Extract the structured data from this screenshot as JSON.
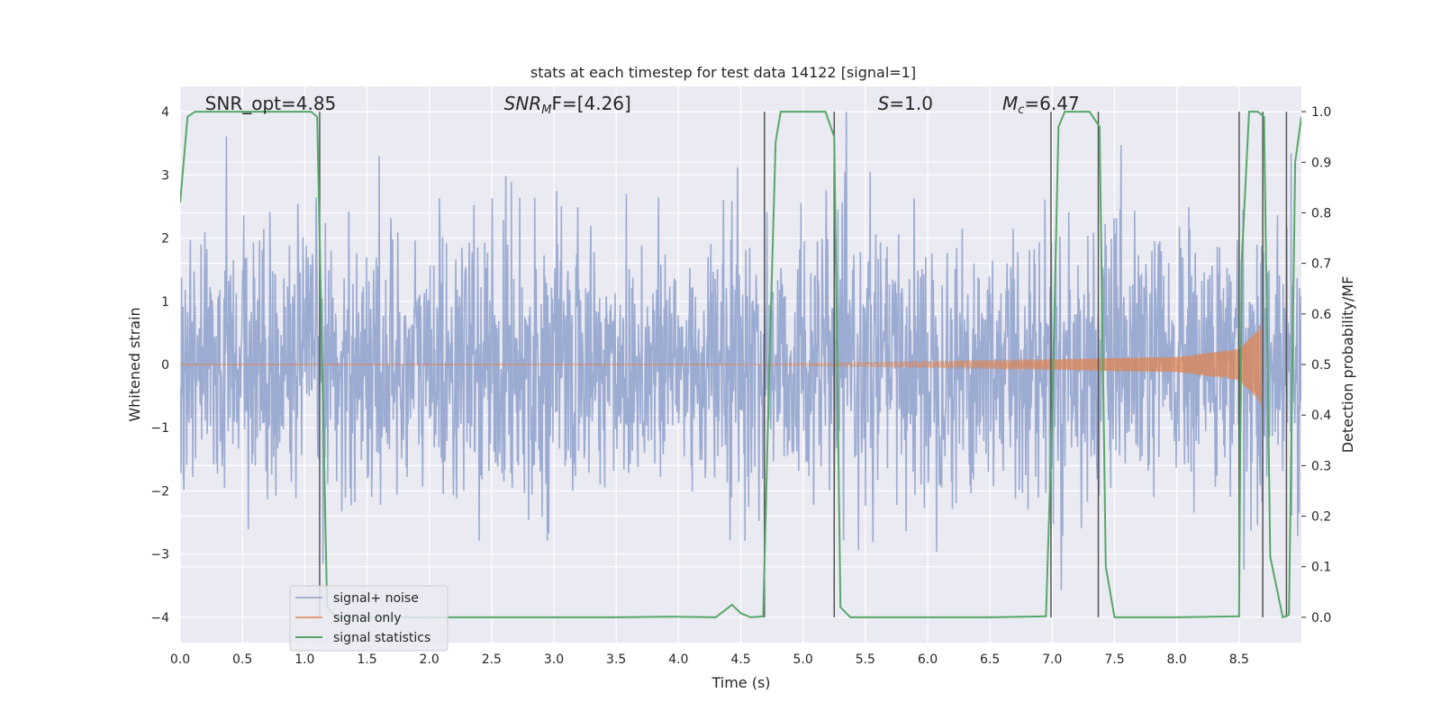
{
  "chart_data": {
    "type": "line",
    "title": "stats at each timestep for test data 14122 [signal=1]",
    "xlabel": "Time (s)",
    "ylabel_left": "Whitened strain",
    "ylabel_right": "Detection probability/MF",
    "xlim": [
      0.0,
      9.0
    ],
    "ylim_left": [
      -4.4,
      4.4
    ],
    "ylim_right": [
      -0.05,
      1.05
    ],
    "x_ticks": [
      0.0,
      0.5,
      1.0,
      1.5,
      2.0,
      2.5,
      3.0,
      3.5,
      4.0,
      4.5,
      5.0,
      5.5,
      6.0,
      6.5,
      7.0,
      7.5,
      8.0,
      8.5
    ],
    "x_tick_labels": [
      "0.0",
      "0.5",
      "1.0",
      "1.5",
      "2.0",
      "2.5",
      "3.0",
      "3.5",
      "4.0",
      "4.5",
      "5.0",
      "5.5",
      "6.0",
      "6.5",
      "7.0",
      "7.5",
      "8.0",
      "8.5"
    ],
    "y_left_ticks": [
      -4,
      -3,
      -2,
      -1,
      0,
      1,
      2,
      3,
      4
    ],
    "y_left_tick_labels": [
      "−4",
      "−3",
      "−2",
      "−1",
      "0",
      "1",
      "2",
      "3",
      "4"
    ],
    "y_right_ticks": [
      0.0,
      0.1,
      0.2,
      0.3,
      0.4,
      0.5,
      0.6,
      0.7,
      0.8,
      0.9,
      1.0
    ],
    "y_right_tick_labels": [
      "0.0",
      "0.1",
      "0.2",
      "0.3",
      "0.4",
      "0.5",
      "0.6",
      "0.7",
      "0.8",
      "0.9",
      "1.0"
    ],
    "grid": true,
    "legend_position": "lower-left",
    "annotations": [
      {
        "name": "snr-opt",
        "text": "SNR_opt=4.85",
        "x": 0.2
      },
      {
        "name": "snr-mf",
        "text": "SNR",
        "sub": "M",
        "rest": "F=[4.26]",
        "italic": true,
        "x": 2.6
      },
      {
        "name": "s-value",
        "text": "S",
        "rest": "=1.0",
        "italic": true,
        "x": 5.6
      },
      {
        "name": "mc-value",
        "text": "M",
        "sub": "c",
        "rest": "=6.47",
        "italic": true,
        "x": 6.6
      }
    ],
    "series": [
      {
        "name": "signal+ noise",
        "color": "#8da0cb",
        "axis": "left",
        "kind": "noise",
        "envelope": {
          "x": [
            0.0,
            9.0
          ],
          "typical_abs_max": 2.6,
          "peak_abs_max": 4.0
        }
      },
      {
        "name": "signal only",
        "color": "#dd8452",
        "axis": "left",
        "kind": "chirp",
        "envelope": {
          "x": [
            4.5,
            5.0,
            6.0,
            7.0,
            8.0,
            8.5,
            8.65,
            8.68
          ],
          "amp": [
            0.0,
            0.02,
            0.05,
            0.08,
            0.12,
            0.25,
            0.55,
            0.72
          ]
        }
      },
      {
        "name": "signal statistics",
        "color": "#55a868",
        "axis": "right",
        "x": [
          0.0,
          0.06,
          0.12,
          0.3,
          0.6,
          0.9,
          1.05,
          1.1,
          1.18,
          1.25,
          2.0,
          3.0,
          3.5,
          3.9,
          4.0,
          4.3,
          4.43,
          4.5,
          4.58,
          4.68,
          4.73,
          4.78,
          4.82,
          5.0,
          5.18,
          5.25,
          5.3,
          5.38,
          5.5,
          6.0,
          6.5,
          6.95,
          7.0,
          7.05,
          7.1,
          7.15,
          7.3,
          7.38,
          7.43,
          7.5,
          8.0,
          8.5,
          8.52,
          8.58,
          8.65,
          8.7,
          8.75,
          8.85,
          8.9,
          8.95,
          9.0
        ],
        "y": [
          0.82,
          0.99,
          1.0,
          1.0,
          1.0,
          1.0,
          1.0,
          0.99,
          0.02,
          0.0,
          0.0,
          0.0,
          0.0,
          0.001,
          0.001,
          0.0,
          0.025,
          0.008,
          0.0,
          0.002,
          0.5,
          0.94,
          1.0,
          1.0,
          1.0,
          0.95,
          0.02,
          0.0,
          0.0,
          0.0,
          0.0,
          0.002,
          0.4,
          0.97,
          1.0,
          1.0,
          1.0,
          0.97,
          0.1,
          0.0,
          0.0,
          0.002,
          0.7,
          1.0,
          1.0,
          0.99,
          0.12,
          0.0,
          0.005,
          0.9,
          0.99
        ]
      }
    ],
    "vertical_markers": [
      1.12,
      4.69,
      5.25,
      6.99,
      7.37,
      8.5,
      8.69,
      8.88
    ]
  }
}
